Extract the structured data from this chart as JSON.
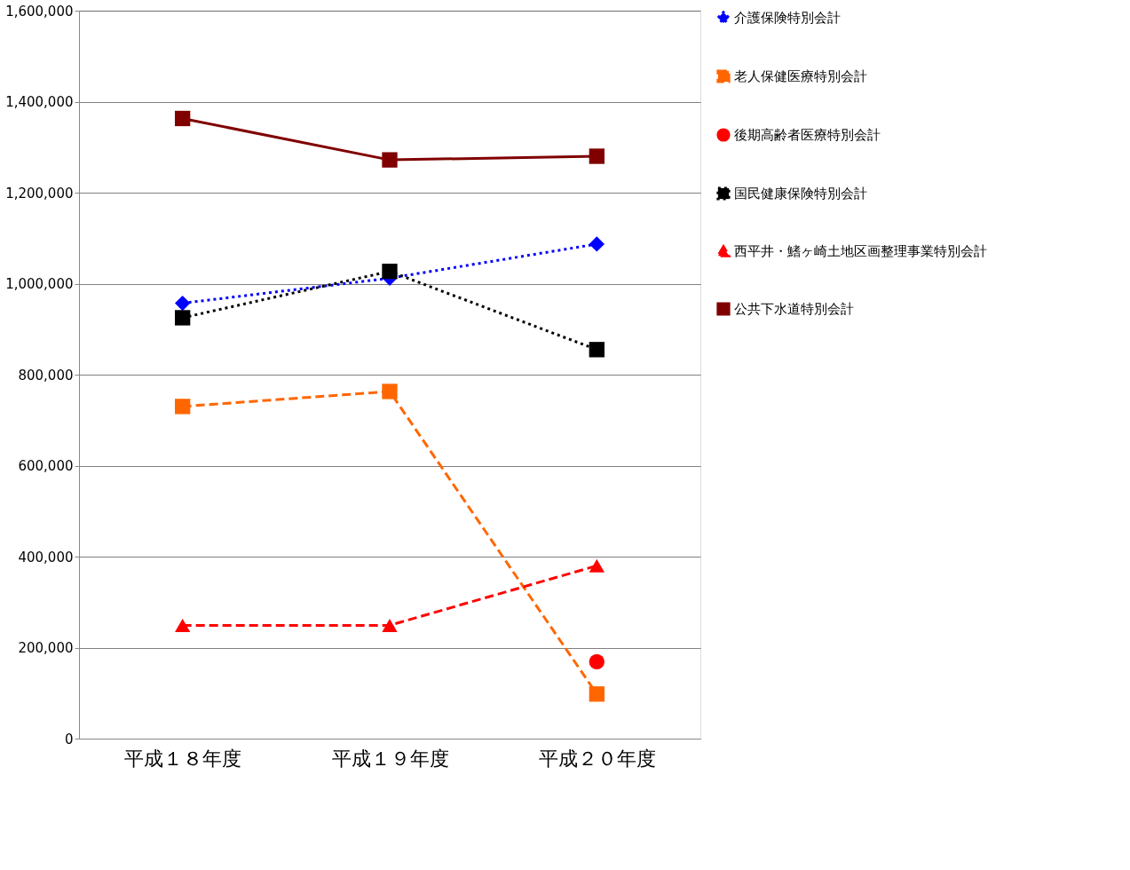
{
  "chart_data": {
    "type": "line",
    "categories": [
      "平成１８年度",
      "平成１９年度",
      "平成２０年度"
    ],
    "ylim": [
      0,
      1600000
    ],
    "yticks": [
      0,
      {
        "value": 200000,
        "label": "200,000"
      },
      {
        "value": 400000,
        "label": "400,000"
      },
      {
        "value": 600000,
        "label": "600,000"
      },
      {
        "value": 800000,
        "label": "800,000"
      },
      {
        "value": 1000000,
        "label": "1,000,000"
      },
      {
        "value": 1200000,
        "label": "1,200,000"
      },
      {
        "value": 1400000,
        "label": "1,400,000"
      },
      {
        "value": 1600000,
        "label": "1,600,000"
      }
    ],
    "grid": "y",
    "legend": "right",
    "series": [
      {
        "name": "介護保険特別会計",
        "color": "#0000ff",
        "marker": "diamond",
        "line_style": "dotted",
        "values": [
          957000,
          1012000,
          1087000
        ]
      },
      {
        "name": "老人保健医療特別会計",
        "color": "#ff6600",
        "marker": "square",
        "line_style": "dashed",
        "values": [
          730000,
          763000,
          98000
        ]
      },
      {
        "name": "後期高齢者医療特別会計",
        "color": "#ff0000",
        "marker": "circle",
        "line_style": "solid",
        "values": [
          null,
          null,
          169000
        ]
      },
      {
        "name": "国民健康保険特別会計",
        "color": "#000000",
        "marker": "square",
        "line_style": "dotted",
        "values": [
          925000,
          1027000,
          855000
        ]
      },
      {
        "name": "西平井・鰭ヶ崎土地区画整理事業特別会計",
        "color": "#ff0000",
        "marker": "triangle",
        "line_style": "dashed",
        "values": [
          249000,
          249000,
          380000
        ]
      },
      {
        "name": "公共下水道特別会計",
        "color": "#800000",
        "marker": "square",
        "line_style": "solid",
        "values": [
          1363000,
          1272000,
          1280000
        ]
      }
    ]
  }
}
